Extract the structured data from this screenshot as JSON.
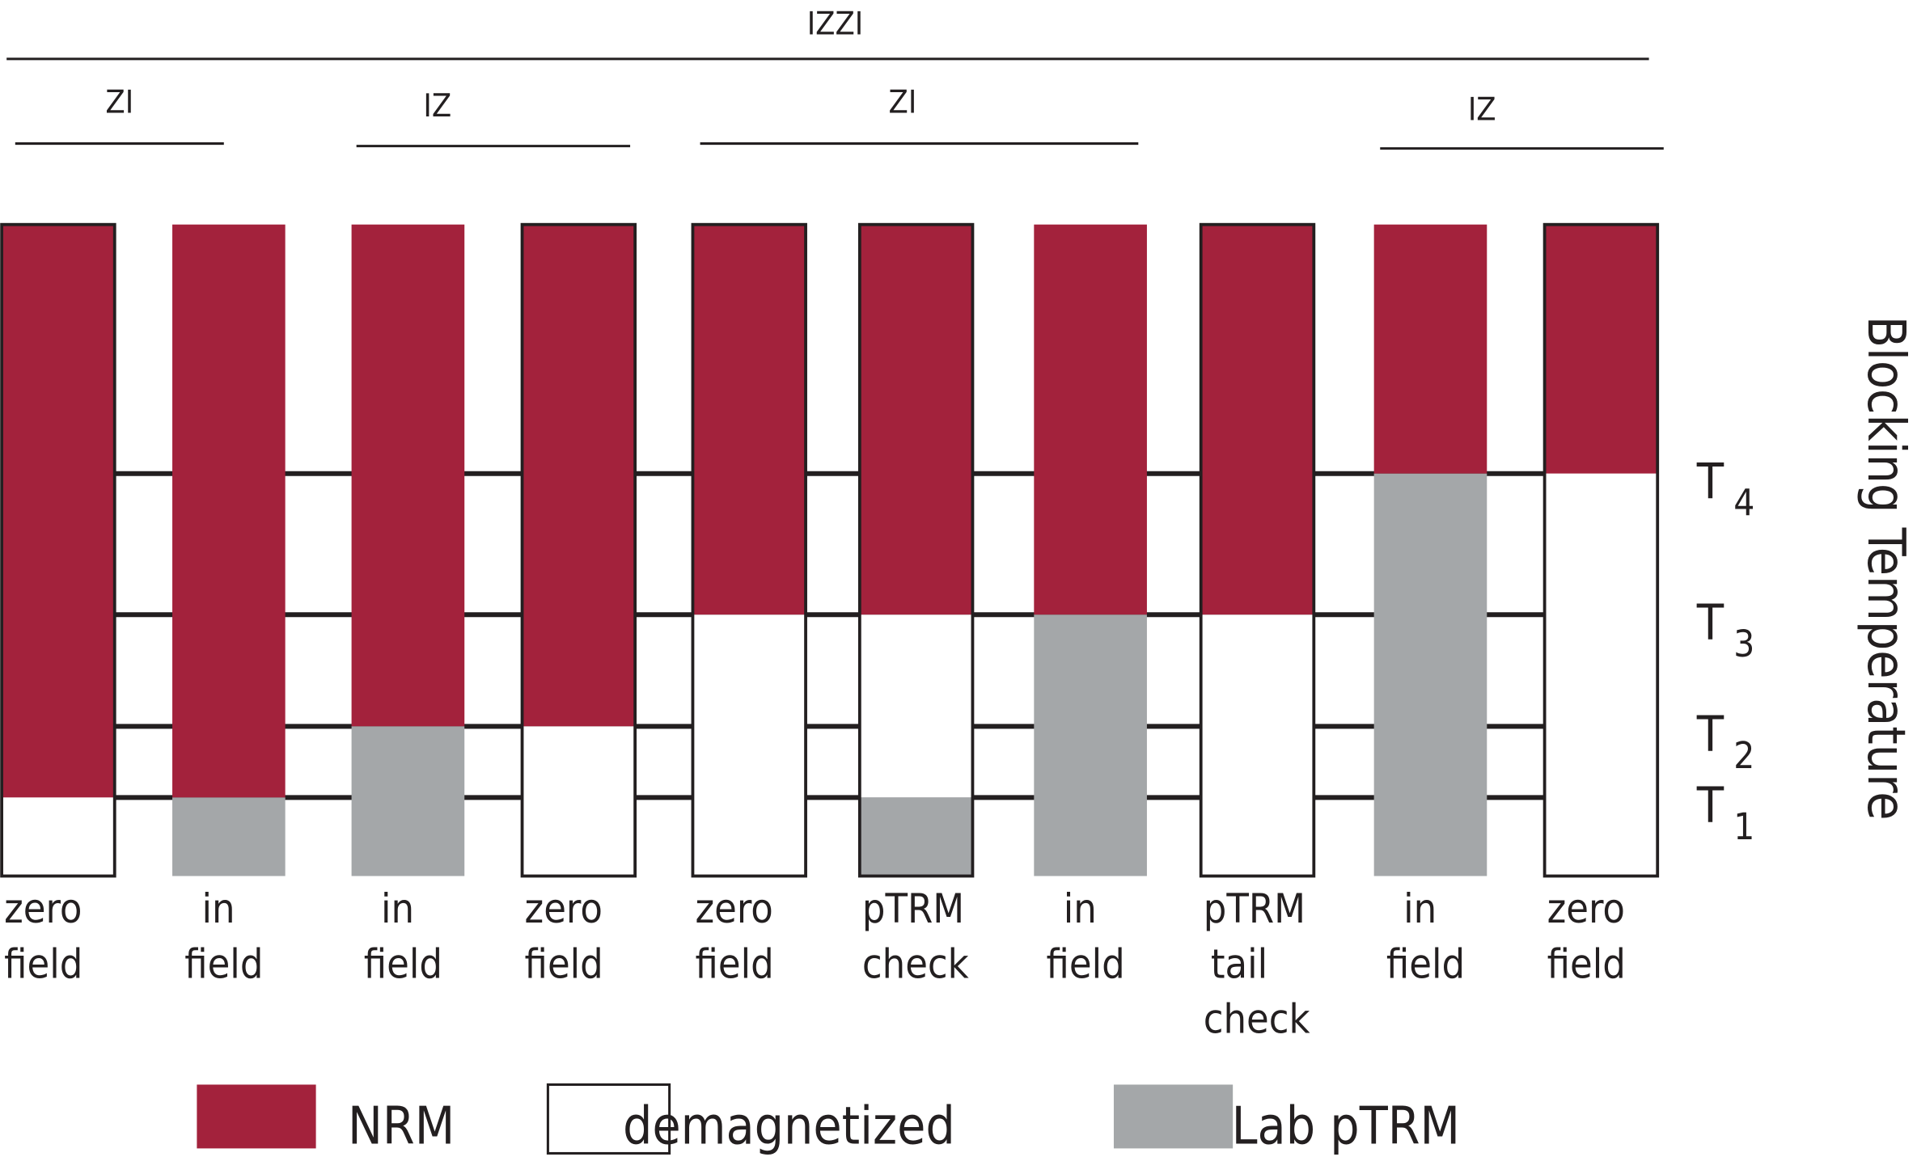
{
  "colors": {
    "NRM": "#a3223c",
    "demagnetized": "#ffffff",
    "Lab pTRM": "#a4a7a9",
    "line": "#231f20"
  },
  "header": {
    "top": "IZZI",
    "groups": [
      "ZI",
      "IZ",
      "ZI",
      "IZ"
    ]
  },
  "levels": [
    "T4",
    "T3",
    "T2",
    "T1"
  ],
  "level_labels": [
    {
      "main": "T",
      "sub": "4"
    },
    {
      "main": "T",
      "sub": "3"
    },
    {
      "main": "T",
      "sub": "2"
    },
    {
      "main": "T",
      "sub": "1"
    }
  ],
  "y_axis_label": "Blocking Temperature",
  "steps": [
    {
      "label": [
        "zero",
        "field"
      ],
      "outlined": true,
      "segments": [
        {
          "type": "NRM",
          "from": "T1",
          "to": "top"
        },
        {
          "type": "demagnetized",
          "from": "bottom",
          "to": "T1"
        }
      ]
    },
    {
      "label": [
        "in",
        "field"
      ],
      "outlined": false,
      "segments": [
        {
          "type": "NRM",
          "from": "T1",
          "to": "top"
        },
        {
          "type": "Lab pTRM",
          "from": "bottom",
          "to": "T1"
        }
      ]
    },
    {
      "label": [
        "in",
        "field"
      ],
      "outlined": false,
      "segments": [
        {
          "type": "NRM",
          "from": "T2",
          "to": "top"
        },
        {
          "type": "Lab pTRM",
          "from": "bottom",
          "to": "T2"
        }
      ]
    },
    {
      "label": [
        "zero",
        "field"
      ],
      "outlined": true,
      "segments": [
        {
          "type": "NRM",
          "from": "T2",
          "to": "top"
        },
        {
          "type": "demagnetized",
          "from": "bottom",
          "to": "T2"
        }
      ]
    },
    {
      "label": [
        "zero",
        "field"
      ],
      "outlined": true,
      "segments": [
        {
          "type": "NRM",
          "from": "T3",
          "to": "top"
        },
        {
          "type": "demagnetized",
          "from": "bottom",
          "to": "T3"
        }
      ]
    },
    {
      "label": [
        "pTRM",
        "check"
      ],
      "outlined": true,
      "segments": [
        {
          "type": "NRM",
          "from": "T3",
          "to": "top"
        },
        {
          "type": "demagnetized",
          "from": "T1",
          "to": "T3"
        },
        {
          "type": "Lab pTRM",
          "from": "bottom",
          "to": "T1"
        }
      ]
    },
    {
      "label": [
        "in",
        "field"
      ],
      "outlined": false,
      "segments": [
        {
          "type": "NRM",
          "from": "T3",
          "to": "top"
        },
        {
          "type": "Lab pTRM",
          "from": "bottom",
          "to": "T3"
        }
      ]
    },
    {
      "label": [
        "pTRM",
        "tail",
        "check"
      ],
      "outlined": true,
      "segments": [
        {
          "type": "NRM",
          "from": "T3",
          "to": "top"
        },
        {
          "type": "demagnetized",
          "from": "bottom",
          "to": "T3"
        }
      ]
    },
    {
      "label": [
        "in",
        "field"
      ],
      "outlined": false,
      "segments": [
        {
          "type": "NRM",
          "from": "T4",
          "to": "top"
        },
        {
          "type": "Lab pTRM",
          "from": "bottom",
          "to": "T4"
        }
      ]
    },
    {
      "label": [
        "zero",
        "field"
      ],
      "outlined": true,
      "segments": [
        {
          "type": "NRM",
          "from": "T4",
          "to": "top"
        },
        {
          "type": "demagnetized",
          "from": "bottom",
          "to": "T4"
        }
      ]
    }
  ],
  "legend": [
    {
      "key": "NRM",
      "label": "NRM"
    },
    {
      "key": "demagnetized",
      "label": "demagnetized"
    },
    {
      "key": "Lab pTRM",
      "label": "Lab pTRM"
    }
  ]
}
